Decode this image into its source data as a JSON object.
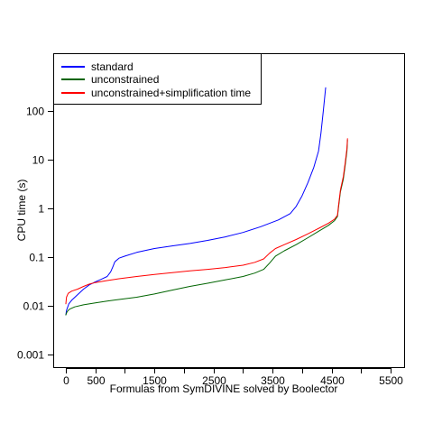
{
  "chart_data": {
    "type": "line",
    "xlabel": "Formulas from SymDIVINE solved by Boolector",
    "ylabel": "CPU time (s)",
    "xlim": [
      0,
      5500
    ],
    "ylim": [
      0.001,
      300
    ],
    "y_scale": "log",
    "grid": false,
    "legend_position": "top-left",
    "x_ticks": [
      {
        "value": 0,
        "label": "0"
      },
      {
        "value": 500,
        "label": "500"
      },
      {
        "value": 1500,
        "label": "1500"
      },
      {
        "value": 2500,
        "label": "2500"
      },
      {
        "value": 3500,
        "label": "3500"
      },
      {
        "value": 4500,
        "label": "4500"
      },
      {
        "value": 5500,
        "label": "5500"
      }
    ],
    "x_minor_ticks": [
      1000,
      2000,
      3000,
      4000,
      5000
    ],
    "y_ticks": [
      {
        "value": 0.001,
        "label": "0.001"
      },
      {
        "value": 0.01,
        "label": "0.01"
      },
      {
        "value": 0.1,
        "label": "0.1"
      },
      {
        "value": 1,
        "label": "1"
      },
      {
        "value": 10,
        "label": "10"
      },
      {
        "value": 100,
        "label": "100"
      }
    ],
    "series": [
      {
        "name": "standard",
        "color": "#0000ff",
        "points": [
          [
            0,
            0.0065
          ],
          [
            10,
            0.008
          ],
          [
            50,
            0.011
          ],
          [
            100,
            0.013
          ],
          [
            200,
            0.017
          ],
          [
            300,
            0.022
          ],
          [
            400,
            0.027
          ],
          [
            500,
            0.031
          ],
          [
            600,
            0.035
          ],
          [
            700,
            0.04
          ],
          [
            760,
            0.05
          ],
          [
            800,
            0.065
          ],
          [
            830,
            0.08
          ],
          [
            900,
            0.095
          ],
          [
            1000,
            0.105
          ],
          [
            1200,
            0.125
          ],
          [
            1500,
            0.15
          ],
          [
            1800,
            0.17
          ],
          [
            2100,
            0.19
          ],
          [
            2400,
            0.22
          ],
          [
            2700,
            0.26
          ],
          [
            3000,
            0.32
          ],
          [
            3300,
            0.42
          ],
          [
            3600,
            0.58
          ],
          [
            3800,
            0.78
          ],
          [
            3900,
            1.1
          ],
          [
            4000,
            1.8
          ],
          [
            4100,
            3.4
          ],
          [
            4200,
            7.0
          ],
          [
            4280,
            15
          ],
          [
            4320,
            35
          ],
          [
            4360,
            100
          ],
          [
            4400,
            300
          ]
        ]
      },
      {
        "name": "unconstrained",
        "color": "#006400",
        "points": [
          [
            0,
            0.0065
          ],
          [
            20,
            0.0075
          ],
          [
            60,
            0.0085
          ],
          [
            150,
            0.0095
          ],
          [
            300,
            0.0105
          ],
          [
            500,
            0.0115
          ],
          [
            700,
            0.0125
          ],
          [
            900,
            0.0135
          ],
          [
            1200,
            0.015
          ],
          [
            1500,
            0.0175
          ],
          [
            1800,
            0.021
          ],
          [
            2100,
            0.025
          ],
          [
            2400,
            0.029
          ],
          [
            2700,
            0.034
          ],
          [
            3000,
            0.04
          ],
          [
            3200,
            0.047
          ],
          [
            3350,
            0.056
          ],
          [
            3450,
            0.075
          ],
          [
            3550,
            0.105
          ],
          [
            3700,
            0.135
          ],
          [
            3900,
            0.18
          ],
          [
            4100,
            0.25
          ],
          [
            4300,
            0.35
          ],
          [
            4450,
            0.45
          ],
          [
            4550,
            0.56
          ],
          [
            4600,
            0.68
          ],
          [
            4620,
            1.1
          ],
          [
            4650,
            2.2
          ],
          [
            4700,
            4.0
          ],
          [
            4730,
            7.5
          ],
          [
            4760,
            15
          ],
          [
            4770,
            25
          ]
        ]
      },
      {
        "name": "unconstrained+simplification time",
        "color": "#ff0000",
        "points": [
          [
            0,
            0.011
          ],
          [
            10,
            0.015
          ],
          [
            40,
            0.018
          ],
          [
            100,
            0.02
          ],
          [
            200,
            0.022
          ],
          [
            300,
            0.025
          ],
          [
            400,
            0.028
          ],
          [
            500,
            0.03
          ],
          [
            700,
            0.033
          ],
          [
            900,
            0.036
          ],
          [
            1200,
            0.04
          ],
          [
            1500,
            0.044
          ],
          [
            1800,
            0.048
          ],
          [
            2100,
            0.052
          ],
          [
            2400,
            0.056
          ],
          [
            2700,
            0.061
          ],
          [
            3000,
            0.068
          ],
          [
            3200,
            0.078
          ],
          [
            3350,
            0.092
          ],
          [
            3450,
            0.12
          ],
          [
            3550,
            0.15
          ],
          [
            3700,
            0.18
          ],
          [
            3900,
            0.23
          ],
          [
            4100,
            0.3
          ],
          [
            4300,
            0.4
          ],
          [
            4450,
            0.5
          ],
          [
            4550,
            0.6
          ],
          [
            4600,
            0.72
          ],
          [
            4620,
            1.2
          ],
          [
            4650,
            2.4
          ],
          [
            4700,
            4.5
          ],
          [
            4730,
            8.5
          ],
          [
            4760,
            17
          ],
          [
            4770,
            27
          ]
        ]
      }
    ]
  }
}
